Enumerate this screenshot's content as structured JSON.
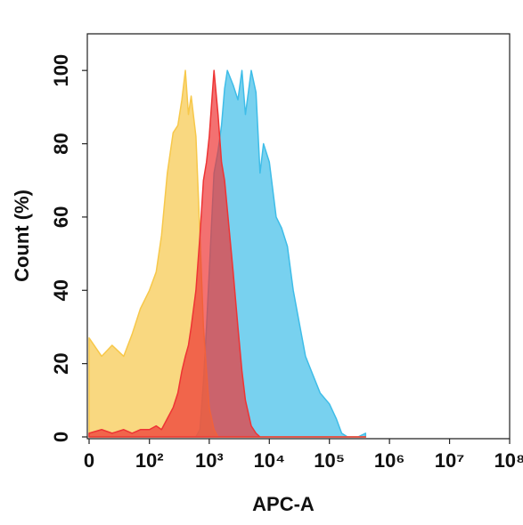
{
  "chart_data": {
    "type": "histogram-overlay",
    "xlabel": "APC-A",
    "ylabel": "Count  (%)",
    "xscale": "biexponential",
    "x": [
      0,
      10,
      20,
      35,
      50,
      70,
      100,
      130,
      160,
      200,
      250,
      300,
      350,
      400,
      450,
      500,
      600,
      700,
      800,
      900,
      1000,
      1200,
      1400,
      1600,
      1800,
      2000,
      2500,
      3000,
      3500,
      4000,
      5000,
      6000,
      7000,
      8000,
      10000,
      13000,
      16000,
      20000,
      25000,
      30000,
      40000,
      50000,
      70000,
      100000,
      130000,
      160000,
      200000,
      300000,
      400000
    ],
    "series": [
      {
        "name": "blue",
        "color": "#3fbde8",
        "values": [
          0,
          0,
          0,
          0,
          0,
          0,
          0,
          0,
          0,
          0,
          0,
          0,
          0,
          0,
          0,
          0,
          0,
          2,
          15,
          30,
          45,
          72,
          78,
          85,
          95,
          100,
          96,
          92,
          100,
          88,
          100,
          94,
          72,
          80,
          75,
          60,
          57,
          52,
          40,
          33,
          22,
          18,
          12,
          9,
          5,
          1,
          0,
          0,
          1
        ]
      },
      {
        "name": "yellow",
        "color": "#f7c84a",
        "values": [
          27,
          22,
          25,
          22,
          28,
          35,
          40,
          45,
          55,
          72,
          83,
          85,
          92,
          100,
          88,
          93,
          82,
          55,
          30,
          18,
          8,
          2,
          0,
          0,
          0,
          0,
          0,
          0,
          0,
          0,
          0,
          0,
          0,
          0,
          0,
          0,
          0,
          0,
          0,
          0,
          0,
          0,
          0,
          0,
          0,
          0,
          0,
          0,
          0
        ]
      },
      {
        "name": "red",
        "color": "#ee3434",
        "values": [
          1,
          2,
          1,
          2,
          1,
          2,
          2,
          3,
          2,
          5,
          8,
          12,
          18,
          22,
          25,
          30,
          40,
          55,
          70,
          75,
          82,
          100,
          88,
          75,
          70,
          62,
          45,
          30,
          18,
          10,
          3,
          1,
          0,
          0,
          0,
          0,
          0,
          0,
          0,
          0,
          0,
          0,
          0,
          0,
          0,
          0,
          0,
          0,
          0
        ]
      }
    ],
    "xlim": [
      0,
      100000000
    ],
    "xticks": [
      0,
      {
        "value": 100,
        "label": "10²"
      },
      {
        "value": 1000,
        "label": "10³"
      },
      {
        "value": 10000,
        "label": "10⁴"
      },
      {
        "value": 100000,
        "label": "10⁵"
      },
      {
        "value": 1000000,
        "label": "10⁶"
      },
      {
        "value": 10000000,
        "label": "10⁷"
      },
      {
        "value": 100000000,
        "label": "10⁸"
      }
    ],
    "ylim": [
      0,
      110
    ],
    "yticks": [
      0,
      20,
      40,
      60,
      80,
      100
    ]
  }
}
